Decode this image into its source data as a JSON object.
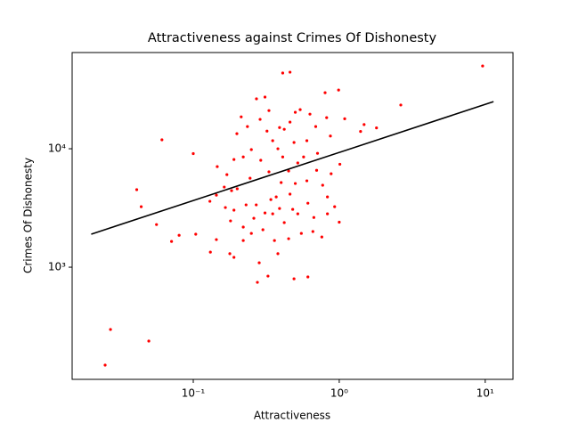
{
  "chart_data": {
    "type": "scatter",
    "title": "Attractiveness against Crimes Of Dishonesty",
    "x_label": "Attractiveness",
    "y_label": "Crimes Of Dishonesty",
    "log_x": true,
    "log_y": true,
    "xlim": [
      0.0148,
      15.5
    ],
    "ylim": [
      113,
      64900
    ],
    "xticks": [
      {
        "value": 0.1,
        "label": "10⁻¹"
      },
      {
        "value": 1,
        "label": "10⁰"
      },
      {
        "value": 10,
        "label": "10¹"
      }
    ],
    "yticks": [
      {
        "value": 1000,
        "label": "10³"
      },
      {
        "value": 10000,
        "label": "10⁴"
      }
    ],
    "color": "#ff0000",
    "x": [
      9.6,
      2.64,
      1.8,
      1.48,
      1.4,
      1.09,
      0.99,
      0.8,
      0.82,
      0.87,
      1.01,
      1.0,
      0.93,
      0.88,
      0.061,
      0.1,
      0.041,
      0.044,
      0.056,
      0.071,
      0.08,
      0.104,
      0.131,
      0.144,
      0.13,
      0.146,
      0.163,
      0.183,
      0.0249,
      0.0271,
      0.0496,
      0.275,
      0.61,
      0.49,
      0.325,
      0.283,
      0.19,
      0.178,
      0.271,
      0.31,
      0.41,
      0.46,
      0.213,
      0.235,
      0.199,
      0.287,
      0.32,
      0.35,
      0.38,
      0.42,
      0.5,
      0.54,
      0.63,
      0.69,
      0.6,
      0.71,
      0.52,
      0.45,
      0.4,
      0.34,
      0.31,
      0.26,
      0.23,
      0.2,
      0.245,
      0.29,
      0.33,
      0.39,
      0.46,
      0.52,
      0.61,
      0.66,
      0.76,
      0.55,
      0.42,
      0.36,
      0.3,
      0.25,
      0.22,
      0.18,
      0.19,
      0.166,
      0.144,
      0.77,
      0.83,
      0.7,
      0.6,
      0.5,
      0.41,
      0.25,
      0.22,
      0.19,
      0.17,
      0.35,
      0.45,
      0.38,
      0.22,
      0.27,
      0.37,
      0.48,
      0.67,
      0.83,
      0.57,
      0.49,
      0.39,
      0.33,
      0.46
    ],
    "values": [
      50000,
      23400,
      15000,
      16000,
      14000,
      17900,
      31300,
      29700,
      18300,
      12800,
      7400,
      2400,
      3240,
      6150,
      11900,
      9100,
      4510,
      3240,
      2290,
      1650,
      1860,
      1900,
      1340,
      1710,
      3600,
      7070,
      4750,
      4430,
      149,
      298,
      238,
      745,
      827,
      798,
      841,
      1090,
      1210,
      1300,
      26400,
      27300,
      43600,
      44300,
      18600,
      15400,
      13400,
      17700,
      14100,
      11700,
      10000,
      14600,
      20300,
      21400,
      19600,
      15400,
      11700,
      9150,
      7590,
      6490,
      5180,
      3720,
      2870,
      2590,
      3360,
      4590,
      5640,
      7990,
      6380,
      3130,
      4140,
      2820,
      3470,
      2000,
      1800,
      1930,
      2380,
      1680,
      2070,
      1930,
      2180,
      2460,
      3030,
      3190,
      4060,
      4920,
      3920,
      6580,
      5360,
      5090,
      8530,
      9830,
      8530,
      8110,
      6050,
      2820,
      1740,
      1300,
      1680,
      3360,
      3920,
      3080,
      2630,
      2820,
      8530,
      11300,
      15100,
      21000,
      16800
    ],
    "fit": {
      "x": [
        0.02,
        11.4
      ],
      "values": [
        1900,
        25000
      ],
      "color": "#000000"
    }
  }
}
